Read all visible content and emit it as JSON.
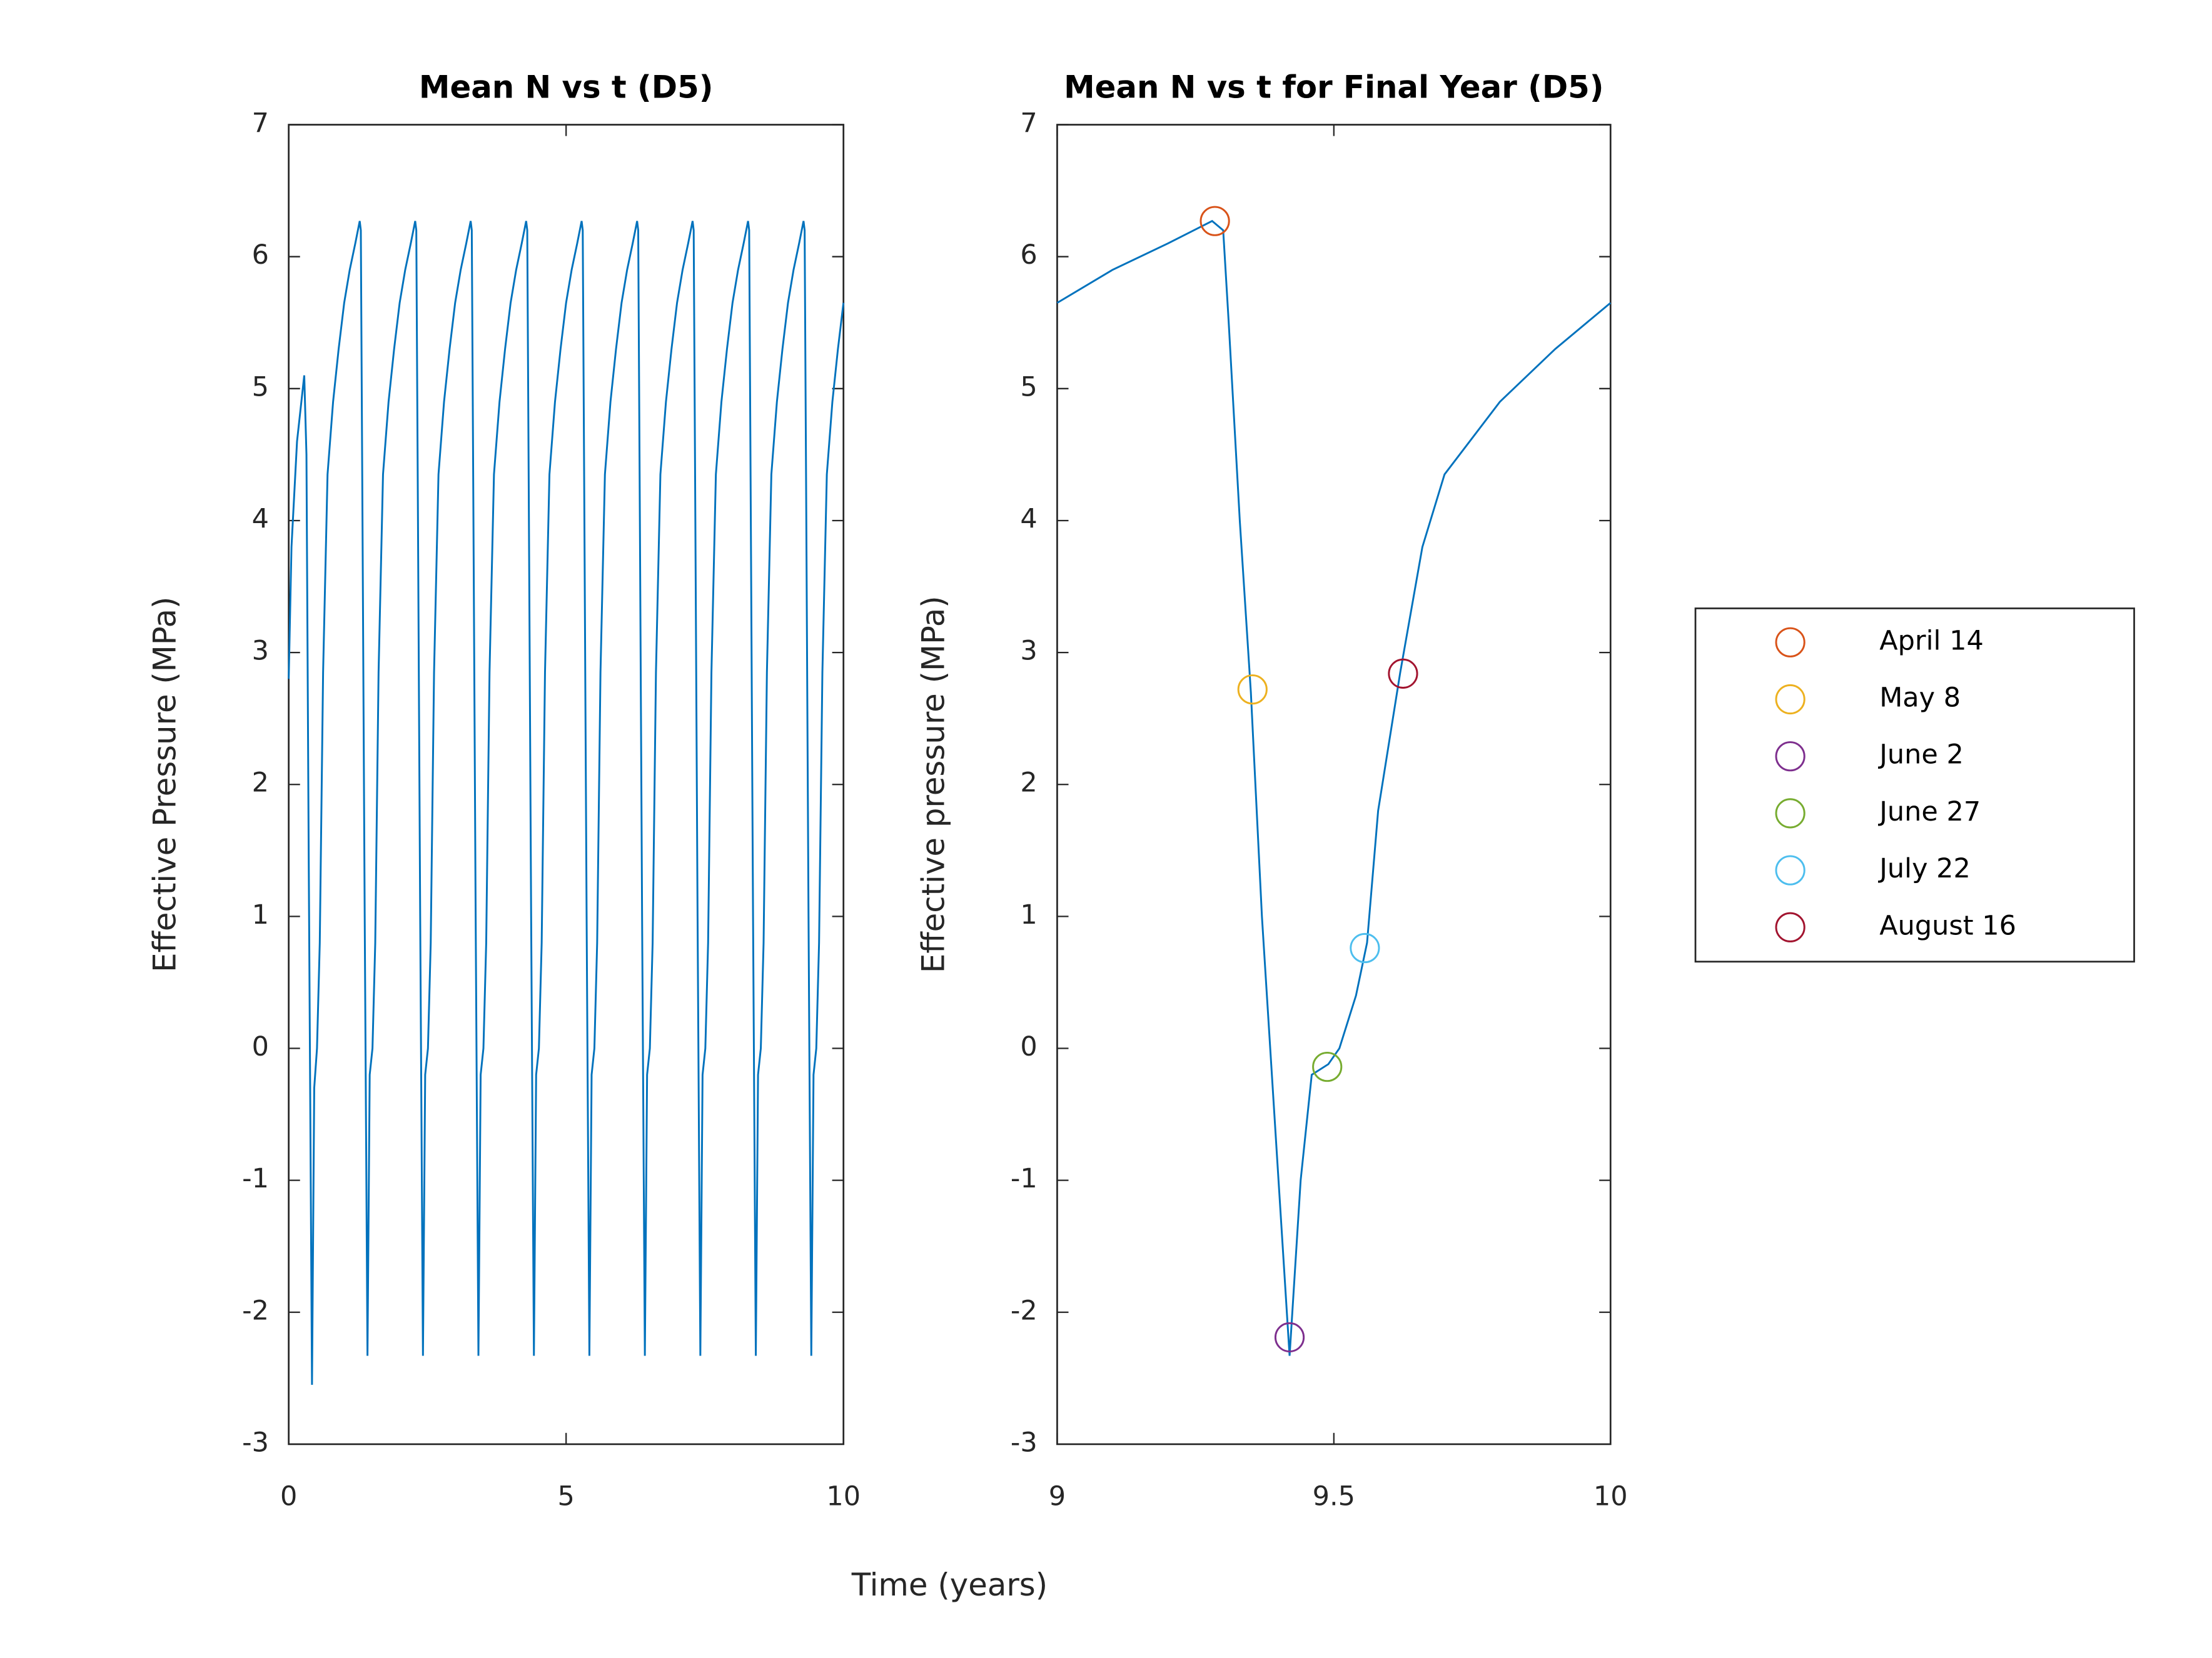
{
  "chart_data": [
    {
      "type": "line",
      "title": "Mean N vs t (D5)",
      "xlabel": "Time (years)",
      "ylabel": "Effective Pressure (MPa)",
      "xlim": [
        0,
        10
      ],
      "ylim": [
        -3,
        7
      ],
      "xticks": [
        0,
        5,
        10
      ],
      "yticks": [
        -3,
        -2,
        -1,
        0,
        1,
        2,
        3,
        4,
        5,
        6,
        7
      ],
      "series": [
        {
          "color": "#0072bd",
          "x": [
            0,
            0.05,
            0.15,
            0.28,
            0.32,
            0.36,
            0.42,
            0.46,
            0.51,
            0.56,
            0.62,
            0.7,
            0.8,
            0.9,
            1,
            1.1,
            1.2,
            1.28,
            1.3,
            1.33,
            1.37,
            1.42,
            1.46,
            1.51,
            1.56,
            1.62,
            1.7,
            1.8,
            1.9,
            2,
            2.1,
            2.2,
            2.28,
            2.3,
            2.33,
            2.37,
            2.42,
            2.46,
            2.51,
            2.56,
            2.62,
            2.7,
            2.8,
            2.9,
            3,
            3.1,
            3.2,
            3.28,
            3.3,
            3.33,
            3.37,
            3.42,
            3.46,
            3.51,
            3.56,
            3.62,
            3.7,
            3.8,
            3.9,
            4,
            4.1,
            4.2,
            4.28,
            4.3,
            4.33,
            4.37,
            4.42,
            4.46,
            4.51,
            4.56,
            4.62,
            4.7,
            4.8,
            4.9,
            5,
            5.1,
            5.2,
            5.28,
            5.3,
            5.33,
            5.37,
            5.42,
            5.46,
            5.51,
            5.56,
            5.62,
            5.7,
            5.8,
            5.9,
            6,
            6.1,
            6.2,
            6.28,
            6.3,
            6.33,
            6.37,
            6.42,
            6.46,
            6.51,
            6.56,
            6.62,
            6.7,
            6.8,
            6.9,
            7,
            7.1,
            7.2,
            7.28,
            7.3,
            7.33,
            7.37,
            7.42,
            7.46,
            7.51,
            7.56,
            7.62,
            7.7,
            7.8,
            7.9,
            8,
            8.1,
            8.2,
            8.28,
            8.3,
            8.33,
            8.37,
            8.42,
            8.46,
            8.51,
            8.56,
            8.62,
            8.7,
            8.8,
            8.9,
            9,
            9.1,
            9.2,
            9.28,
            9.3,
            9.33,
            9.37,
            9.42,
            9.46,
            9.51,
            9.56,
            9.62,
            9.7,
            9.8,
            9.9,
            10
          ],
          "values": [
            2.8,
            3.8,
            4.6,
            5.1,
            4.5,
            1.5,
            -2.55,
            -0.3,
            0,
            0.8,
            2.85,
            4.35,
            4.9,
            5.3,
            5.65,
            5.9,
            6.1,
            6.27,
            6.2,
            4,
            1,
            -2.33,
            -0.2,
            0,
            0.8,
            2.85,
            4.35,
            4.9,
            5.3,
            5.65,
            5.9,
            6.1,
            6.27,
            6.2,
            4,
            1,
            -2.33,
            -0.2,
            0,
            0.8,
            2.85,
            4.35,
            4.9,
            5.3,
            5.65,
            5.9,
            6.1,
            6.27,
            6.2,
            4,
            1,
            -2.33,
            -0.2,
            0,
            0.8,
            2.85,
            4.35,
            4.9,
            5.3,
            5.65,
            5.9,
            6.1,
            6.27,
            6.2,
            4,
            1,
            -2.33,
            -0.2,
            0,
            0.8,
            2.85,
            4.35,
            4.9,
            5.3,
            5.65,
            5.9,
            6.1,
            6.27,
            6.2,
            4,
            1,
            -2.33,
            -0.2,
            0,
            0.8,
            2.85,
            4.35,
            4.9,
            5.3,
            5.65,
            5.9,
            6.1,
            6.27,
            6.2,
            4,
            1,
            -2.33,
            -0.2,
            0,
            0.8,
            2.85,
            4.35,
            4.9,
            5.3,
            5.65,
            5.9,
            6.1,
            6.27,
            6.2,
            4,
            1,
            -2.33,
            -0.2,
            0,
            0.8,
            2.85,
            4.35,
            4.9,
            5.3,
            5.65,
            5.9,
            6.1,
            6.27,
            6.2,
            4,
            1,
            -2.33,
            -0.2,
            0,
            0.8,
            2.85,
            4.35,
            4.9,
            5.3,
            5.65,
            5.9,
            6.1,
            6.27,
            6.2,
            4,
            1,
            -2.33,
            -0.2,
            0,
            0.8,
            2.85,
            4.35,
            4.9,
            5.3,
            5.65
          ]
        }
      ]
    },
    {
      "type": "line",
      "title": "Mean N vs t for Final Year (D5)",
      "ylabel": "Effective pressure (MPa)",
      "xlim": [
        9,
        10
      ],
      "ylim": [
        -3,
        7
      ],
      "xticks": [
        9,
        9.5,
        10
      ],
      "yticks": [
        -3,
        -2,
        -1,
        0,
        1,
        2,
        3,
        4,
        5,
        6,
        7
      ],
      "legend": "right",
      "series": [
        {
          "color": "#0072bd",
          "x": [
            9,
            9.1,
            9.2,
            9.28,
            9.3,
            9.31,
            9.33,
            9.35,
            9.37,
            9.4,
            9.42,
            9.44,
            9.46,
            9.49,
            9.51,
            9.54,
            9.56,
            9.58,
            9.62,
            9.66,
            9.7,
            9.8,
            9.9,
            10
          ],
          "values": [
            5.65,
            5.9,
            6.1,
            6.27,
            6.2,
            5.5,
            4,
            2.7,
            1,
            -1,
            -2.33,
            -1,
            -0.2,
            -0.12,
            0,
            0.4,
            0.8,
            1.8,
            2.85,
            3.8,
            4.35,
            4.9,
            5.3,
            5.65
          ]
        },
        {
          "name": "April 14",
          "color": "#d95319",
          "marker": "circle",
          "x": [
            9.285
          ],
          "values": [
            6.27
          ]
        },
        {
          "name": "May 8",
          "color": "#edb120",
          "marker": "circle",
          "x": [
            9.353
          ],
          "values": [
            2.72
          ]
        },
        {
          "name": "June 2",
          "color": "#7e2f8e",
          "marker": "circle",
          "x": [
            9.42
          ],
          "values": [
            -2.19
          ]
        },
        {
          "name": "June 27",
          "color": "#77ac30",
          "marker": "circle",
          "x": [
            9.488
          ],
          "values": [
            -0.14
          ]
        },
        {
          "name": "July 22",
          "color": "#4dbeee",
          "marker": "circle",
          "x": [
            9.556
          ],
          "values": [
            0.76
          ]
        },
        {
          "name": "August 16",
          "color": "#a2142f",
          "marker": "circle",
          "x": [
            9.625
          ],
          "values": [
            2.84
          ]
        }
      ]
    }
  ]
}
